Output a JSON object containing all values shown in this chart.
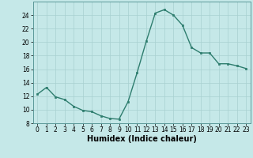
{
  "x": [
    0,
    1,
    2,
    3,
    4,
    5,
    6,
    7,
    8,
    9,
    10,
    11,
    12,
    13,
    14,
    15,
    16,
    17,
    18,
    19,
    20,
    21,
    22,
    23
  ],
  "y": [
    12.3,
    13.3,
    11.9,
    11.5,
    10.5,
    9.9,
    9.7,
    9.1,
    8.7,
    8.6,
    11.2,
    15.5,
    20.1,
    24.3,
    24.8,
    24.0,
    22.5,
    19.2,
    18.4,
    18.4,
    16.8,
    16.8,
    16.5,
    16.1
  ],
  "line_color": "#2e7d6e",
  "marker": "s",
  "marker_size": 2.0,
  "bg_color": "#c5e8e8",
  "grid_color": "#a8d0d0",
  "xlabel": "Humidex (Indice chaleur)",
  "ylim": [
    8,
    26
  ],
  "xlim": [
    -0.5,
    23.5
  ],
  "yticks": [
    8,
    10,
    12,
    14,
    16,
    18,
    20,
    22,
    24
  ],
  "xticks": [
    0,
    1,
    2,
    3,
    4,
    5,
    6,
    7,
    8,
    9,
    10,
    11,
    12,
    13,
    14,
    15,
    16,
    17,
    18,
    19,
    20,
    21,
    22,
    23
  ],
  "tick_fontsize": 5.5,
  "xlabel_fontsize": 7.0,
  "line_width": 1.0
}
